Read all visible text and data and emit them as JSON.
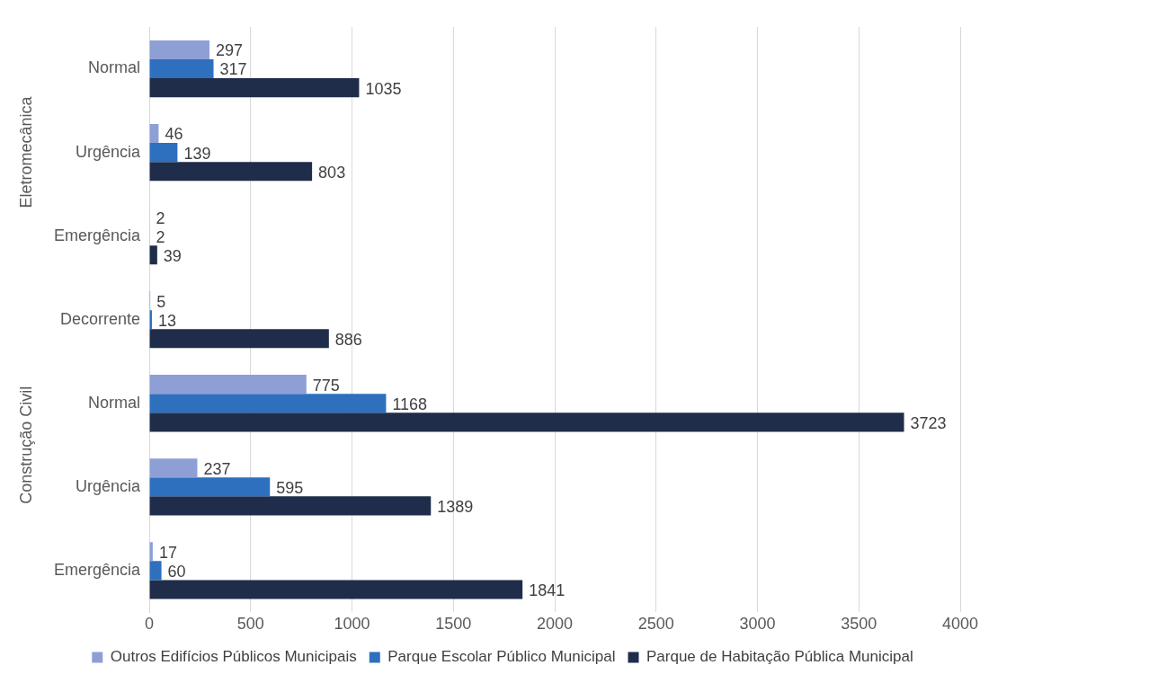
{
  "chart_data": {
    "type": "bar",
    "orientation": "horizontal",
    "categories": [
      "Normal",
      "Urgência",
      "Emergência",
      "Decorrente",
      "Normal",
      "Urgência",
      "Emergência"
    ],
    "series": [
      {
        "name": "Outros Edifícios Públicos Municipais",
        "color": "#8e9fd6",
        "values": [
          297,
          46,
          2,
          5,
          775,
          237,
          17
        ]
      },
      {
        "name": "Parque Escolar Público Municipal",
        "color": "#2e6fbe",
        "values": [
          317,
          139,
          2,
          13,
          1168,
          595,
          60
        ]
      },
      {
        "name": "Parque de Habitação Pública Municipal",
        "color": "#1f2d4a",
        "values": [
          1035,
          803,
          39,
          886,
          3723,
          1389,
          1841
        ]
      }
    ],
    "annotations": [
      "Eletromecânica",
      "Construção Civil"
    ],
    "xlim": [
      0,
      4000
    ],
    "xticks": [
      0,
      500,
      1000,
      1500,
      2000,
      2500,
      3000,
      3500,
      4000
    ],
    "grid": "x",
    "legend": "bottom",
    "data_labels": true
  }
}
